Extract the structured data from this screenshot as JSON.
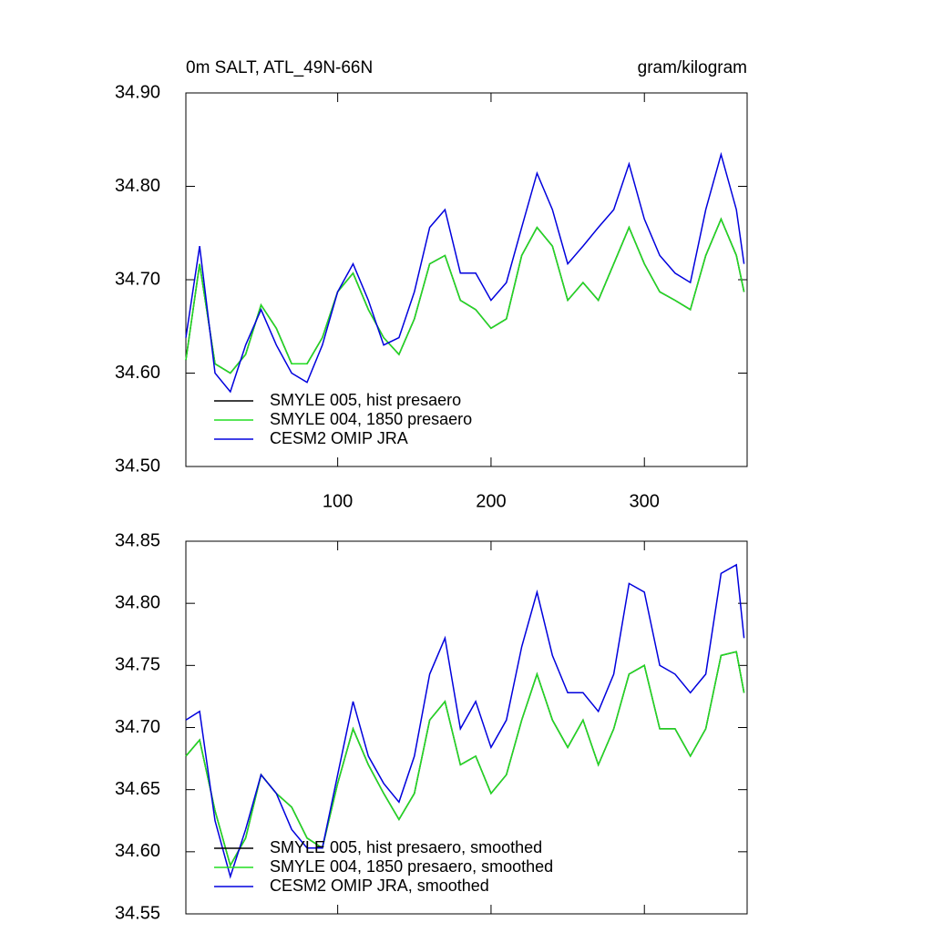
{
  "chart_data": [
    {
      "type": "line",
      "title": "0m SALT, ATL_49N-66N",
      "unit_label": "gram/kilogram",
      "x": [
        1,
        10,
        20,
        30,
        40,
        50,
        60,
        70,
        80,
        90,
        100,
        110,
        120,
        130,
        140,
        150,
        160,
        170,
        180,
        190,
        200,
        210,
        220,
        230,
        240,
        250,
        260,
        270,
        280,
        290,
        300,
        310,
        320,
        330,
        340,
        350,
        360,
        365
      ],
      "xlim": [
        1,
        367
      ],
      "xticks": [
        100,
        200,
        300
      ],
      "ylim": [
        34.5,
        34.9
      ],
      "yticks": [
        {
          "value": 34.5,
          "label": "34.50"
        },
        {
          "value": 34.6,
          "label": "34.60"
        },
        {
          "value": 34.7,
          "label": "34.70"
        },
        {
          "value": 34.8,
          "label": "34.80"
        },
        {
          "value": 34.9,
          "label": "34.90"
        }
      ],
      "legend": "lower left",
      "series": [
        {
          "name": "SMYLE 005, hist presaero",
          "color": "#000000",
          "values": [
            34.614,
            34.717,
            34.61,
            34.6,
            34.62,
            34.673,
            34.648,
            34.61,
            34.61,
            34.638,
            34.687,
            34.707,
            34.668,
            34.638,
            34.62,
            34.658,
            34.717,
            34.726,
            34.678,
            34.668,
            34.648,
            34.658,
            34.726,
            34.756,
            34.736,
            34.678,
            34.697,
            34.678,
            34.717,
            34.756,
            34.717,
            34.687,
            34.678,
            34.668,
            34.726,
            34.765,
            34.726,
            34.687
          ]
        },
        {
          "name": "SMYLE 004, 1850 presaero",
          "color": "#22dd22",
          "values": [
            34.614,
            34.717,
            34.61,
            34.6,
            34.62,
            34.673,
            34.648,
            34.61,
            34.61,
            34.638,
            34.687,
            34.707,
            34.668,
            34.638,
            34.62,
            34.658,
            34.717,
            34.726,
            34.678,
            34.668,
            34.648,
            34.658,
            34.726,
            34.756,
            34.736,
            34.678,
            34.697,
            34.678,
            34.717,
            34.756,
            34.717,
            34.687,
            34.678,
            34.668,
            34.726,
            34.765,
            34.726,
            34.687
          ]
        },
        {
          "name": "CESM2 OMIP JRA",
          "color": "#0000dd",
          "values": [
            34.638,
            34.736,
            34.6,
            34.58,
            34.63,
            34.668,
            34.63,
            34.6,
            34.59,
            34.63,
            34.687,
            34.717,
            34.678,
            34.63,
            34.638,
            34.687,
            34.756,
            34.775,
            34.707,
            34.707,
            34.678,
            34.697,
            34.756,
            34.814,
            34.775,
            34.717,
            34.736,
            34.756,
            34.775,
            34.824,
            34.765,
            34.726,
            34.707,
            34.697,
            34.775,
            34.834,
            34.775,
            34.717
          ]
        }
      ]
    },
    {
      "type": "line",
      "x": [
        1,
        10,
        20,
        30,
        40,
        50,
        60,
        70,
        80,
        90,
        100,
        110,
        120,
        130,
        140,
        150,
        160,
        170,
        180,
        190,
        200,
        210,
        220,
        230,
        240,
        250,
        260,
        270,
        280,
        290,
        300,
        310,
        320,
        330,
        340,
        350,
        360,
        365
      ],
      "xlim": [
        1,
        367
      ],
      "xticks": [
        100,
        200,
        300
      ],
      "ylim": [
        34.55,
        34.85
      ],
      "yticks": [
        {
          "value": 34.55,
          "label": "34.55"
        },
        {
          "value": 34.6,
          "label": "34.60"
        },
        {
          "value": 34.65,
          "label": "34.65"
        },
        {
          "value": 34.7,
          "label": "34.70"
        },
        {
          "value": 34.75,
          "label": "34.75"
        },
        {
          "value": 34.8,
          "label": "34.80"
        },
        {
          "value": 34.85,
          "label": "34.85"
        }
      ],
      "legend": "lower left",
      "series": [
        {
          "name": "SMYLE 005, hist presaero, smoothed",
          "color": "#000000",
          "values": [
            34.677,
            34.69,
            34.633,
            34.589,
            34.611,
            34.662,
            34.647,
            34.636,
            34.611,
            34.603,
            34.655,
            34.699,
            34.67,
            34.647,
            34.626,
            34.647,
            34.706,
            34.721,
            34.67,
            34.677,
            34.647,
            34.662,
            34.706,
            34.743,
            34.706,
            34.684,
            34.706,
            34.67,
            34.699,
            34.743,
            34.75,
            34.699,
            34.699,
            34.677,
            34.699,
            34.758,
            34.761,
            34.728
          ]
        },
        {
          "name": "SMYLE 004, 1850 presaero, smoothed",
          "color": "#22dd22",
          "values": [
            34.677,
            34.69,
            34.633,
            34.589,
            34.611,
            34.662,
            34.647,
            34.636,
            34.611,
            34.603,
            34.655,
            34.699,
            34.67,
            34.647,
            34.626,
            34.647,
            34.706,
            34.721,
            34.67,
            34.677,
            34.647,
            34.662,
            34.706,
            34.743,
            34.706,
            34.684,
            34.706,
            34.67,
            34.699,
            34.743,
            34.75,
            34.699,
            34.699,
            34.677,
            34.699,
            34.758,
            34.761,
            34.728
          ]
        },
        {
          "name": "CESM2 OMIP JRA, smoothed",
          "color": "#0000dd",
          "values": [
            34.706,
            34.713,
            34.625,
            34.58,
            34.618,
            34.662,
            34.647,
            34.618,
            34.603,
            34.603,
            34.662,
            34.721,
            34.677,
            34.655,
            34.64,
            34.677,
            34.743,
            34.772,
            34.699,
            34.721,
            34.684,
            34.706,
            34.765,
            34.809,
            34.758,
            34.728,
            34.728,
            34.713,
            34.743,
            34.816,
            34.809,
            34.75,
            34.743,
            34.728,
            34.743,
            34.824,
            34.831,
            34.772
          ]
        }
      ]
    }
  ]
}
